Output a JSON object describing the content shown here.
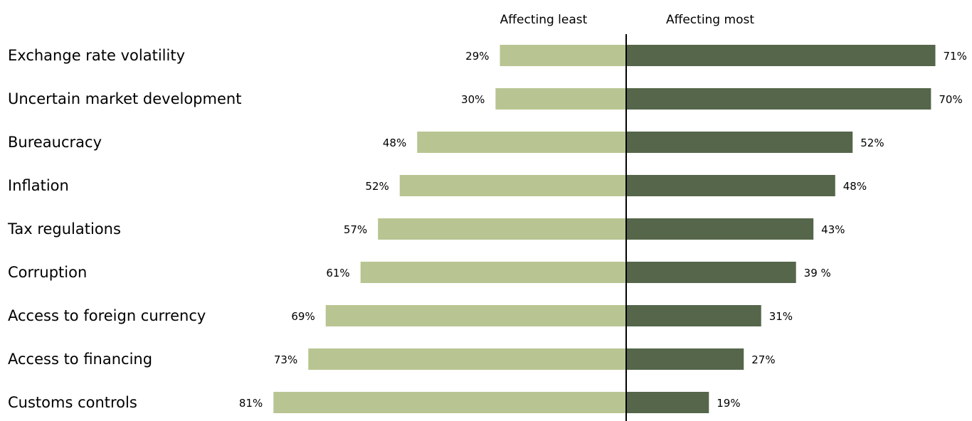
{
  "chart_data": {
    "type": "bar",
    "orientation": "horizontal-diverging",
    "categories": [
      "Exchange rate volatility",
      "Uncertain market development",
      "Bureaucracy",
      "Inflation",
      "Tax regulations",
      "Corruption",
      "Access to foreign currency",
      "Access to financing",
      "Customs controls"
    ],
    "series": [
      {
        "name": "Affecting least",
        "color": "#b8c592",
        "direction": "left",
        "values": [
          29,
          30,
          48,
          52,
          57,
          61,
          69,
          73,
          81
        ],
        "labels": [
          "29%",
          "30%",
          "48%",
          "52%",
          "57%",
          "61%",
          "69%",
          "73%",
          "81%"
        ]
      },
      {
        "name": "Affecting most",
        "color": "#55664a",
        "direction": "right",
        "values": [
          71,
          70,
          52,
          48,
          43,
          39,
          31,
          27,
          19
        ],
        "labels": [
          "71%",
          "70%",
          "52%",
          "48%",
          "43%",
          "39 %",
          "31%",
          "27%",
          "19%"
        ]
      }
    ],
    "xlim": [
      0,
      100
    ],
    "unit": "%",
    "grid": false,
    "legend_position": "top-center",
    "axis_color": "#000000"
  }
}
